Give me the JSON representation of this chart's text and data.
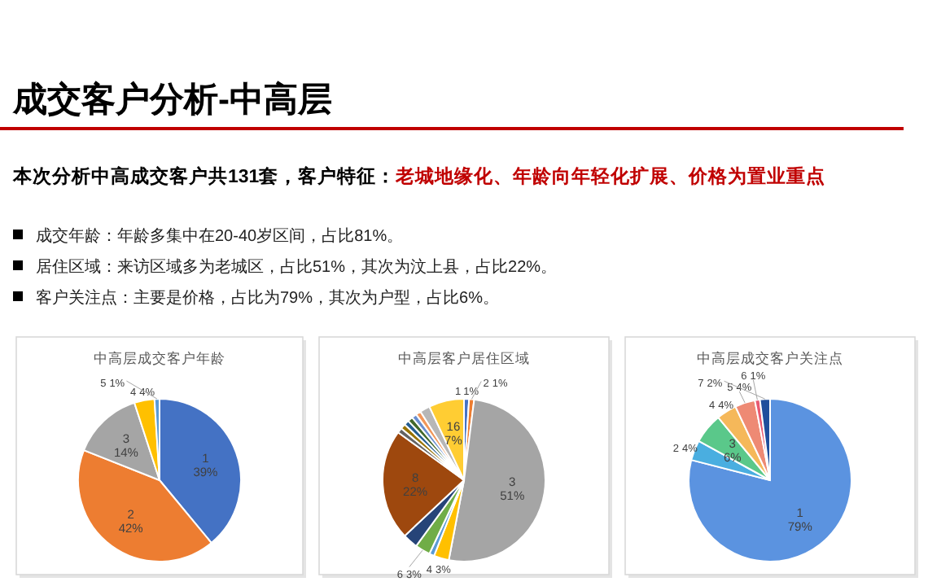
{
  "chart_data": [
    {
      "type": "other",
      "title": "成交客户分析-中高层",
      "annotations": [
        "本次分析中高成交客户共131套，客户特征：",
        "老城地缘化、年龄向年轻化扩展、价格为置业重点",
        "成交年龄：年龄多集中在20-40岁区间，占比81%。",
        "居住区域：来访区域多为老城区，占比51%，其次为汶上县，占比22%。",
        "客户关注点：主要是价格，占比为79%，其次为户型，占比6%。"
      ]
    },
    {
      "type": "pie",
      "title": "中高层成交客户年龄",
      "categories": [
        "1",
        "2",
        "3",
        "4",
        "5"
      ],
      "values": [
        39,
        42,
        14,
        4,
        1
      ],
      "value_labels": [
        "39%",
        "42%",
        "14%",
        "4%",
        "1%"
      ],
      "colors": [
        "#4472c4",
        "#ed7d31",
        "#a5a5a5",
        "#ffc000",
        "#5b9bd5"
      ]
    },
    {
      "type": "pie",
      "title": "中高层客户居住区域",
      "categories": [
        "1",
        "2",
        "3",
        "4",
        null,
        "6",
        null,
        "8",
        null,
        null,
        null,
        null,
        null,
        null,
        null,
        "16"
      ],
      "values": [
        1,
        1,
        51,
        3,
        1,
        3,
        3,
        22,
        1,
        1,
        1,
        1,
        1,
        1,
        2,
        7
      ],
      "value_labels": [
        "1%",
        "1%",
        "51%",
        "3%",
        null,
        "3%",
        null,
        "22%",
        null,
        null,
        null,
        null,
        null,
        null,
        null,
        "7%"
      ],
      "colors": [
        "#4472c4",
        "#ed7d31",
        "#a5a5a5",
        "#ffc000",
        "#5b9bd5",
        "#70ad47",
        "#264478",
        "#9e480e",
        "#636363",
        "#997300",
        "#255e91",
        "#43682b",
        "#698ed0",
        "#f1975a",
        "#b7b7b7",
        "#ffcd33"
      ]
    },
    {
      "type": "pie",
      "title": "中高层成交客户关注点",
      "categories": [
        "1",
        "2",
        "3",
        "4",
        "5",
        "6",
        "7"
      ],
      "values": [
        79,
        4,
        6,
        4,
        4,
        1,
        2
      ],
      "value_labels": [
        "79%",
        "4%",
        "6%",
        "4%",
        "4%",
        "1%",
        "2%"
      ],
      "colors": [
        "#5b93e0",
        "#4aaee0",
        "#5ac88a",
        "#f5b85a",
        "#ee8a74",
        "#e85a70",
        "#1f4e9c"
      ]
    }
  ]
}
